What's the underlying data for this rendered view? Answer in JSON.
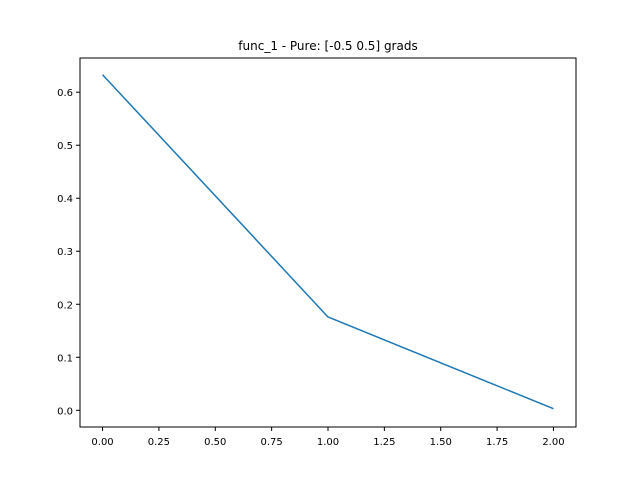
{
  "chart_data": {
    "type": "line",
    "title": "func_1 - Pure: [-0.5  0.5] grads",
    "xlabel": "",
    "ylabel": "",
    "xlim": [
      -0.1,
      2.1
    ],
    "ylim": [
      -0.0315,
      0.6645
    ],
    "xticks": [
      0.0,
      0.25,
      0.5,
      0.75,
      1.0,
      1.25,
      1.5,
      1.75,
      2.0
    ],
    "xtick_labels": [
      "0.00",
      "0.25",
      "0.50",
      "0.75",
      "1.00",
      "1.25",
      "1.50",
      "1.75",
      "2.00"
    ],
    "yticks": [
      0.0,
      0.1,
      0.2,
      0.3,
      0.4,
      0.5,
      0.6
    ],
    "ytick_labels": [
      "0.0",
      "0.1",
      "0.2",
      "0.3",
      "0.4",
      "0.5",
      "0.6"
    ],
    "grid": false,
    "series": [
      {
        "x": [
          0,
          1,
          2
        ],
        "values": [
          0.633,
          0.176,
          0.003
        ],
        "color": "#1f77b4"
      }
    ]
  }
}
